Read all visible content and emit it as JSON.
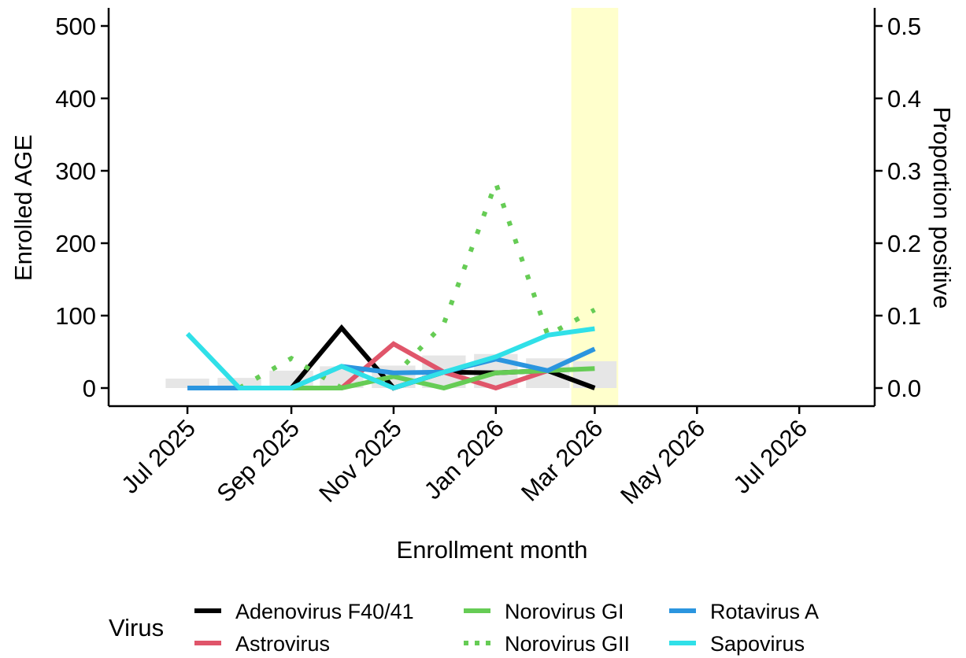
{
  "chart_data": {
    "type": "line",
    "xlabel": "Enrollment month",
    "ylabel": "Enrolled AGE",
    "y2label": "Proportion positive",
    "x_ticks": [
      "2025-07",
      "2025-09",
      "2025-11",
      "2026-01",
      "2026-03",
      "2026-05",
      "2026-07"
    ],
    "x_tick_labels": [
      "Jul 2025",
      "Sep 2025",
      "Nov 2025",
      "Jan 2026",
      "Mar 2026",
      "May 2026",
      "Jul 2026"
    ],
    "xlim": [
      "2025-05-15",
      "2026-08-15"
    ],
    "ylim": [
      -25,
      525
    ],
    "y_ticks": [
      0,
      100,
      200,
      300,
      400,
      500
    ],
    "y_tick_labels": [
      "0",
      "100",
      "200",
      "300",
      "400",
      "500"
    ],
    "y2lim": [
      -0.025,
      0.525
    ],
    "y2_ticks": [
      0,
      0.1,
      0.2,
      0.3,
      0.4,
      0.5
    ],
    "y2_tick_labels": [
      "0.0",
      "0.1",
      "0.2",
      "0.3",
      "0.4",
      "0.5"
    ],
    "highlight": {
      "from": "2026-02-15",
      "to": "2026-03-15",
      "color": "#ffffcc"
    },
    "bars": {
      "color": "#e6e6e6",
      "months": [
        "2025-07",
        "2025-08",
        "2025-09",
        "2025-10",
        "2025-11",
        "2025-12",
        "2026-01",
        "2026-02",
        "2026-03"
      ],
      "values": [
        13,
        14,
        24,
        30,
        31,
        45,
        47,
        41,
        37
      ]
    },
    "months": [
      "2025-07",
      "2025-08",
      "2025-09",
      "2025-10",
      "2025-11",
      "2025-12",
      "2026-01",
      "2026-02",
      "2026-03"
    ],
    "legend_title": "Virus",
    "series": [
      {
        "name": "Adenovirus F40/41",
        "color": "#000000",
        "style": "solid",
        "values": [
          null,
          null,
          0,
          0.083,
          0,
          0.022,
          0.021,
          0.024,
          0
        ]
      },
      {
        "name": "Astrovirus",
        "color": "#e0556a",
        "style": "solid",
        "values": [
          null,
          null,
          0,
          0,
          0.061,
          0.022,
          0,
          0.024,
          null
        ]
      },
      {
        "name": "Norovirus GI",
        "color": "#66cc55",
        "style": "solid",
        "values": [
          null,
          null,
          0,
          0,
          0.016,
          0,
          0.021,
          0.024,
          0.027
        ]
      },
      {
        "name": "Norovirus GII",
        "color": "#66cc55",
        "style": "dotted",
        "values": [
          null,
          0,
          0.041,
          0,
          0.016,
          0.089,
          0.283,
          0.073,
          0.108
        ]
      },
      {
        "name": "Rotavirus A",
        "color": "#2b95df",
        "style": "solid",
        "values": [
          0,
          0,
          0,
          0.03,
          0.021,
          0.022,
          0.04,
          0.024,
          0.054
        ]
      },
      {
        "name": "Sapovirus",
        "color": "#30e0e8",
        "style": "solid",
        "values": [
          0.075,
          0,
          0,
          0.03,
          0,
          0.022,
          0.043,
          0.073,
          0.082
        ]
      }
    ]
  }
}
